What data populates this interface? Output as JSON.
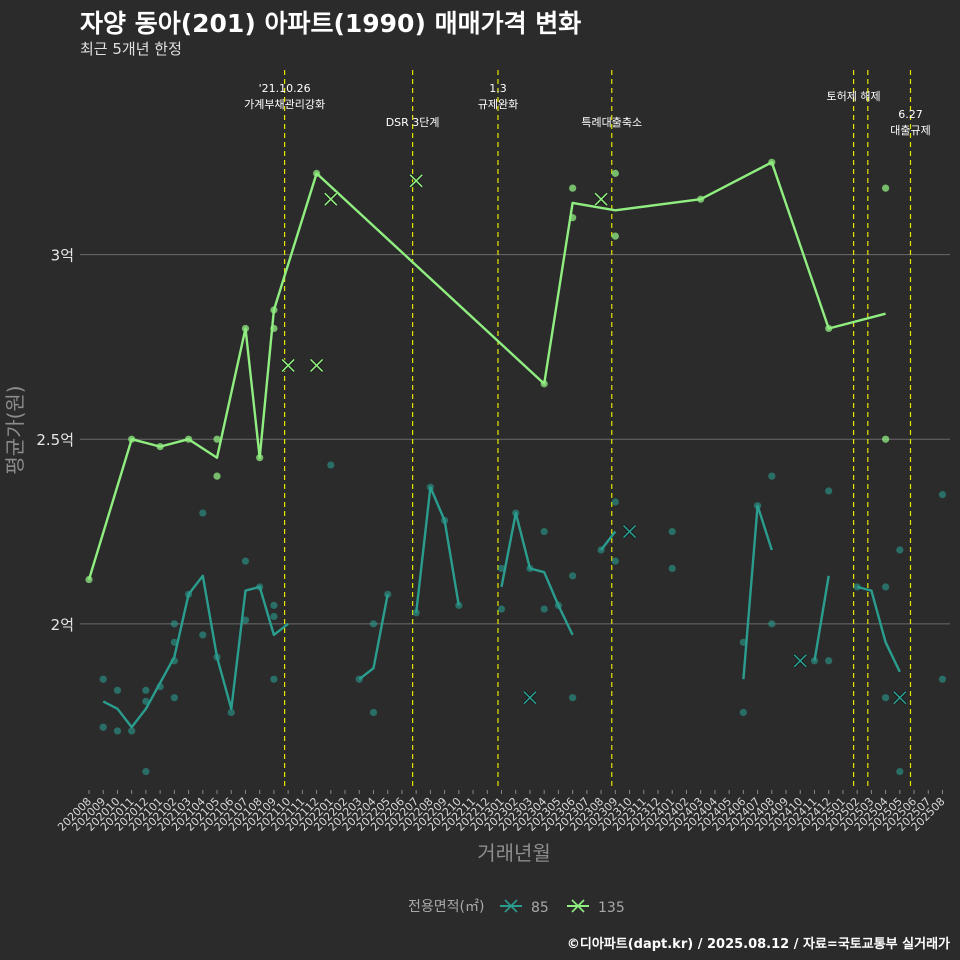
{
  "title": "자양 동아(201) 아파트(1990) 매매가격 변화",
  "subtitle": "최근 5개년 한정",
  "caption": "©디아파트(dapt.kr) / 2025.08.12 / 자료=국토교통부 실거래가",
  "colors": {
    "background": "#2b2b2b",
    "grid": "#6b6b6b",
    "vline": "#e6e600",
    "series85": "#2a9d8f",
    "series135": "#90ee80"
  },
  "chart_data": {
    "type": "line",
    "xlabel": "거래년월",
    "ylabel": "평균가(원)",
    "y_unit": "억",
    "ylim": [
      1.55,
      3.5
    ],
    "y_ticks": [
      {
        "value": 2.0,
        "label": "2억"
      },
      {
        "value": 2.5,
        "label": "2.5억"
      },
      {
        "value": 3.0,
        "label": "3억"
      }
    ],
    "grid": true,
    "x_categories": [
      "202008",
      "202009",
      "202010",
      "202011",
      "202012",
      "202101",
      "202102",
      "202103",
      "202104",
      "202105",
      "202106",
      "202107",
      "202108",
      "202109",
      "202110",
      "202111",
      "202112",
      "202201",
      "202202",
      "202203",
      "202204",
      "202205",
      "202206",
      "202207",
      "202208",
      "202209",
      "202210",
      "202211",
      "202212",
      "202301",
      "202302",
      "202303",
      "202304",
      "202305",
      "202306",
      "202307",
      "202308",
      "202309",
      "202310",
      "202311",
      "202312",
      "202401",
      "202402",
      "202403",
      "202404",
      "202405",
      "202406",
      "202407",
      "202408",
      "202409",
      "202410",
      "202411",
      "202412",
      "202501",
      "202502",
      "202503",
      "202504",
      "202505",
      "202506",
      "202507",
      "202508"
    ],
    "legend": {
      "title": "전용면적(㎡)",
      "position": "bottom",
      "entries": [
        "85",
        "135"
      ]
    },
    "annotations": [
      {
        "x": 14,
        "lines": [
          "'21.10.26",
          "가계부채관리강화"
        ]
      },
      {
        "x": 23,
        "lines": [
          "DSR 3단계"
        ]
      },
      {
        "x": 29,
        "lines": [
          "1.3",
          "규제완화"
        ]
      },
      {
        "x": 37,
        "lines": [
          "특례대출축소"
        ]
      },
      {
        "x": 54,
        "lines": [
          "토허제 해제"
        ]
      },
      {
        "x": 55,
        "lines": []
      },
      {
        "x": 58,
        "lines": [
          "6.27",
          "대출규제"
        ]
      }
    ],
    "series": [
      {
        "name": "85",
        "line": [
          [
            [
              1,
              1.79
            ],
            [
              2,
              1.77
            ],
            [
              3,
              1.72
            ],
            [
              4,
              1.77
            ],
            [
              5,
              1.84
            ],
            [
              6,
              1.91
            ],
            [
              7,
              2.08
            ],
            [
              8,
              2.13
            ],
            [
              9,
              1.91
            ],
            [
              10,
              1.77
            ],
            [
              11,
              2.09
            ],
            [
              12,
              2.1
            ],
            [
              13,
              1.97
            ],
            [
              14,
              2.0
            ]
          ],
          [
            [
              19,
              1.85
            ],
            [
              20,
              1.88
            ],
            [
              21,
              2.08
            ]
          ],
          [
            [
              23,
              2.03
            ],
            [
              24,
              2.37
            ],
            [
              25,
              2.28
            ],
            [
              26,
              2.05
            ]
          ],
          [
            [
              29,
              2.1
            ],
            [
              30,
              2.3
            ],
            [
              31,
              2.15
            ],
            [
              32,
              2.14
            ],
            [
              33,
              2.05
            ],
            [
              34,
              1.97
            ]
          ],
          [
            [
              36,
              2.2
            ],
            [
              37,
              2.25
            ]
          ],
          [
            [
              46,
              1.85
            ],
            [
              47,
              2.32
            ],
            [
              48,
              2.2
            ]
          ],
          [
            [
              51,
              1.9
            ],
            [
              52,
              2.13
            ]
          ],
          [
            [
              54,
              2.1
            ],
            [
              55,
              2.09
            ],
            [
              56,
              1.95
            ],
            [
              57,
              1.87
            ]
          ]
        ],
        "points": [
          [
            1,
            1.85
          ],
          [
            1,
            1.72
          ],
          [
            2,
            1.82
          ],
          [
            2,
            1.71
          ],
          [
            3,
            1.71
          ],
          [
            4,
            1.82
          ],
          [
            4,
            1.79
          ],
          [
            4,
            1.6
          ],
          [
            5,
            1.83
          ],
          [
            6,
            1.95
          ],
          [
            6,
            2.0
          ],
          [
            6,
            1.9
          ],
          [
            6,
            1.8
          ],
          [
            7,
            2.08
          ],
          [
            8,
            2.3
          ],
          [
            8,
            1.97
          ],
          [
            9,
            1.91
          ],
          [
            10,
            1.76
          ],
          [
            11,
            2.17
          ],
          [
            11,
            2.01
          ],
          [
            12,
            2.1
          ],
          [
            13,
            2.05
          ],
          [
            13,
            2.02
          ],
          [
            13,
            1.85
          ],
          [
            17,
            2.43
          ],
          [
            20,
            2.0
          ],
          [
            20,
            1.76
          ],
          [
            19,
            1.85
          ],
          [
            21,
            2.08
          ],
          [
            23,
            2.03
          ],
          [
            24,
            2.37
          ],
          [
            25,
            2.28
          ],
          [
            26,
            2.05
          ],
          [
            29,
            2.15
          ],
          [
            29,
            2.04
          ],
          [
            30,
            2.3
          ],
          [
            31,
            2.15
          ],
          [
            32,
            2.25
          ],
          [
            32,
            2.04
          ],
          [
            33,
            2.05
          ],
          [
            34,
            2.13
          ],
          [
            34,
            1.8
          ],
          [
            36,
            2.2
          ],
          [
            37,
            2.33
          ],
          [
            37,
            2.17
          ],
          [
            41,
            2.25
          ],
          [
            41,
            2.15
          ],
          [
            46,
            1.95
          ],
          [
            46,
            1.76
          ],
          [
            47,
            2.32
          ],
          [
            48,
            2.4
          ],
          [
            48,
            2.0
          ],
          [
            51,
            1.9
          ],
          [
            52,
            2.36
          ],
          [
            52,
            1.9
          ],
          [
            54,
            2.1
          ],
          [
            56,
            2.1
          ],
          [
            56,
            1.8
          ],
          [
            57,
            2.2
          ],
          [
            57,
            1.6
          ],
          [
            60,
            2.35
          ],
          [
            60,
            1.85
          ]
        ],
        "crosses": [
          [
            31,
            1.8
          ],
          [
            38,
            2.25
          ],
          [
            50,
            1.9
          ],
          [
            57,
            1.8
          ]
        ]
      },
      {
        "name": "135",
        "line": [
          [
            [
              0,
              2.12
            ],
            [
              3,
              2.5
            ],
            [
              5,
              2.48
            ],
            [
              7,
              2.5
            ],
            [
              9,
              2.45
            ],
            [
              11,
              2.8
            ],
            [
              12,
              2.45
            ],
            [
              13,
              2.85
            ],
            [
              16,
              3.22
            ],
            [
              32,
              2.65
            ],
            [
              34,
              3.14
            ],
            [
              37,
              3.12
            ],
            [
              43,
              3.15
            ],
            [
              48,
              3.25
            ],
            [
              52,
              2.8
            ],
            [
              56,
              2.84
            ]
          ]
        ],
        "points": [
          [
            0,
            2.12
          ],
          [
            3,
            2.5
          ],
          [
            5,
            2.48
          ],
          [
            7,
            2.5
          ],
          [
            9,
            2.5
          ],
          [
            9,
            2.4
          ],
          [
            11,
            2.8
          ],
          [
            12,
            2.45
          ],
          [
            13,
            2.85
          ],
          [
            13,
            2.8
          ],
          [
            16,
            3.22
          ],
          [
            32,
            2.65
          ],
          [
            34,
            3.18
          ],
          [
            34,
            3.1
          ],
          [
            37,
            3.22
          ],
          [
            37,
            3.05
          ],
          [
            43,
            3.15
          ],
          [
            48,
            3.25
          ],
          [
            52,
            2.8
          ],
          [
            56,
            3.18
          ],
          [
            56,
            2.5
          ]
        ],
        "crosses": [
          [
            14,
            2.7
          ],
          [
            16,
            2.7
          ],
          [
            17,
            3.15
          ],
          [
            23,
            3.2
          ],
          [
            36,
            3.15
          ]
        ]
      }
    ]
  }
}
